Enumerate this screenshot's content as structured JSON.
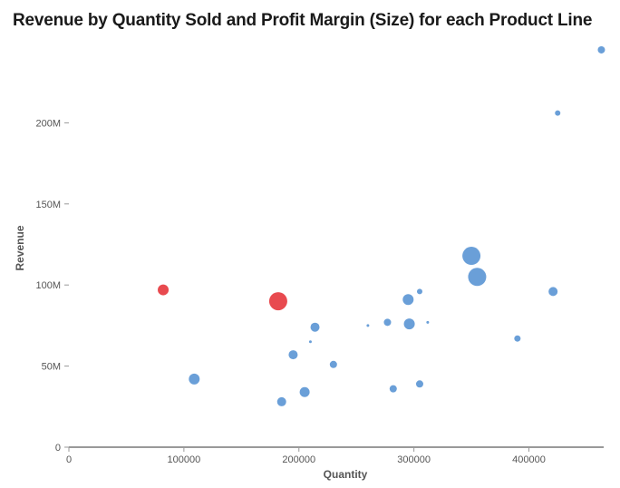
{
  "chart_data": {
    "type": "scatter",
    "title": "Revenue by Quantity Sold and Profit Margin (Size) for each Product Line",
    "xlabel": "Quantity",
    "ylabel": "Revenue",
    "xlim": [
      0,
      465000
    ],
    "ylim": [
      0,
      250000000
    ],
    "x_ticks": [
      0,
      100000,
      200000,
      300000,
      400000
    ],
    "x_tick_labels": [
      "0",
      "100000",
      "200000",
      "300000",
      "400000"
    ],
    "y_ticks": [
      0,
      50000000,
      100000000,
      150000000,
      200000000
    ],
    "y_tick_labels": [
      "0",
      "50M",
      "100M",
      "150M",
      "200M"
    ],
    "grid": false,
    "size_encoding": "Profit Margin",
    "colors": {
      "positive": "#6a9fd8",
      "negative": "#e84a4f"
    },
    "points": [
      {
        "x": 463000,
        "y": 245000000,
        "size": 4,
        "color": "positive"
      },
      {
        "x": 425000,
        "y": 206000000,
        "size": 3,
        "color": "positive"
      },
      {
        "x": 350000,
        "y": 118000000,
        "size": 10,
        "color": "positive"
      },
      {
        "x": 355000,
        "y": 105000000,
        "size": 10,
        "color": "positive"
      },
      {
        "x": 421000,
        "y": 96000000,
        "size": 5,
        "color": "positive"
      },
      {
        "x": 305000,
        "y": 96000000,
        "size": 3,
        "color": "positive"
      },
      {
        "x": 295000,
        "y": 91000000,
        "size": 6,
        "color": "positive"
      },
      {
        "x": 82000,
        "y": 97000000,
        "size": 6,
        "color": "negative"
      },
      {
        "x": 182000,
        "y": 90000000,
        "size": 10,
        "color": "negative"
      },
      {
        "x": 296000,
        "y": 76000000,
        "size": 6,
        "color": "positive"
      },
      {
        "x": 277000,
        "y": 77000000,
        "size": 4,
        "color": "positive"
      },
      {
        "x": 260000,
        "y": 75000000,
        "size": 1.5,
        "color": "positive"
      },
      {
        "x": 312000,
        "y": 77000000,
        "size": 1.5,
        "color": "positive"
      },
      {
        "x": 214000,
        "y": 74000000,
        "size": 5,
        "color": "positive"
      },
      {
        "x": 210000,
        "y": 65000000,
        "size": 1.5,
        "color": "positive"
      },
      {
        "x": 390000,
        "y": 67000000,
        "size": 3.5,
        "color": "positive"
      },
      {
        "x": 195000,
        "y": 57000000,
        "size": 5,
        "color": "positive"
      },
      {
        "x": 230000,
        "y": 51000000,
        "size": 4,
        "color": "positive"
      },
      {
        "x": 109000,
        "y": 42000000,
        "size": 6,
        "color": "positive"
      },
      {
        "x": 305000,
        "y": 39000000,
        "size": 4,
        "color": "positive"
      },
      {
        "x": 282000,
        "y": 36000000,
        "size": 4,
        "color": "positive"
      },
      {
        "x": 205000,
        "y": 34000000,
        "size": 5.5,
        "color": "positive"
      },
      {
        "x": 185000,
        "y": 28000000,
        "size": 5,
        "color": "positive"
      }
    ]
  }
}
